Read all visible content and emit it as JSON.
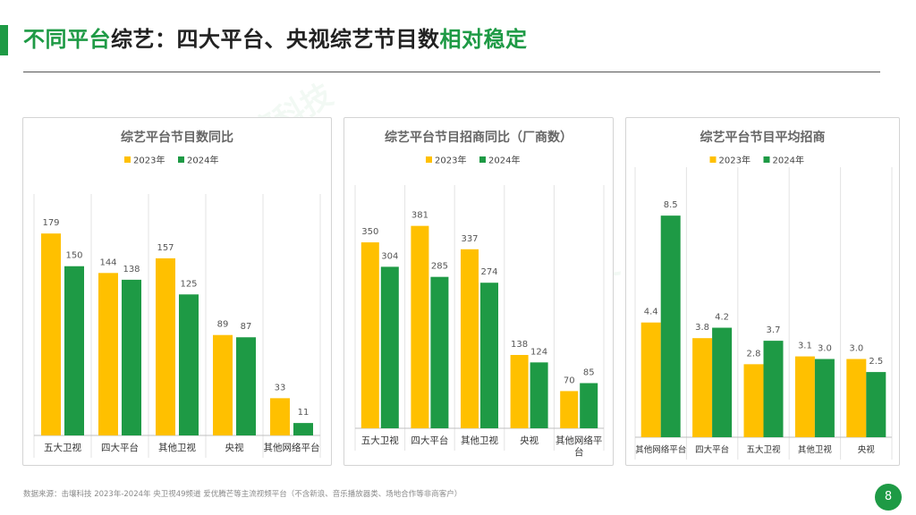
{
  "page": {
    "title_part1": "不同平台",
    "title_part2": "综艺：四大平台、央视综艺节目数",
    "title_part3": "相对稳定",
    "footnote": "数据来源：击壤科技 2023年-2024年 央卫视49频道 爱优腾芒等主流视频平台（不含新浪、音乐播放器类、场地合作等非商客户）",
    "page_number": "8",
    "watermark": "击壤科技"
  },
  "colors": {
    "y2023": "#ffc000",
    "y2024": "#1e9a45",
    "accent": "#1e9a45"
  },
  "chart_data": [
    {
      "type": "bar",
      "title": "综艺平台节目数同比",
      "categories": [
        "五大卫视",
        "四大平台",
        "其他卫视",
        "央视",
        "其他网络平台"
      ],
      "series": [
        {
          "name": "2023年",
          "values": [
            179,
            144,
            157,
            89,
            33
          ],
          "labels": [
            "179",
            "144",
            "157",
            "89",
            "33"
          ]
        },
        {
          "name": "2024年",
          "values": [
            150,
            138,
            125,
            87,
            11
          ],
          "labels": [
            "150",
            "138",
            "125",
            "87",
            "11"
          ]
        }
      ],
      "ylim": [
        0,
        214
      ],
      "legend": "top-center"
    },
    {
      "type": "bar",
      "title": "综艺平台节目招商同比（厂商数）",
      "categories": [
        "五大卫视",
        "四大平台",
        "其他卫视",
        "央视",
        "其他网络平台"
      ],
      "series": [
        {
          "name": "2023年",
          "values": [
            350,
            381,
            337,
            138,
            70
          ],
          "labels": [
            "350",
            "381",
            "337",
            "138",
            "70"
          ]
        },
        {
          "name": "2024年",
          "values": [
            304,
            285,
            274,
            124,
            85
          ],
          "labels": [
            "304",
            "285",
            "274",
            "124",
            "85"
          ]
        }
      ],
      "ylim": [
        0,
        441
      ],
      "legend": "top-center"
    },
    {
      "type": "bar",
      "title": "综艺平台节目平均招商",
      "categories": [
        "其他网络平台",
        "四大平台",
        "五大卫视",
        "其他卫视",
        "央视"
      ],
      "series": [
        {
          "name": "2023年",
          "values": [
            4.4,
            3.8,
            2.8,
            3.1,
            3.0
          ],
          "labels": [
            "4.4",
            "3.8",
            "2.8",
            "3.1",
            "3.0"
          ]
        },
        {
          "name": "2024年",
          "values": [
            8.5,
            4.2,
            3.7,
            3.0,
            2.5
          ],
          "labels": [
            "8.5",
            "4.2",
            "3.7",
            "3.0",
            "2.5"
          ]
        }
      ],
      "ylim": [
        0,
        9.5
      ],
      "legend": "top-center"
    }
  ]
}
